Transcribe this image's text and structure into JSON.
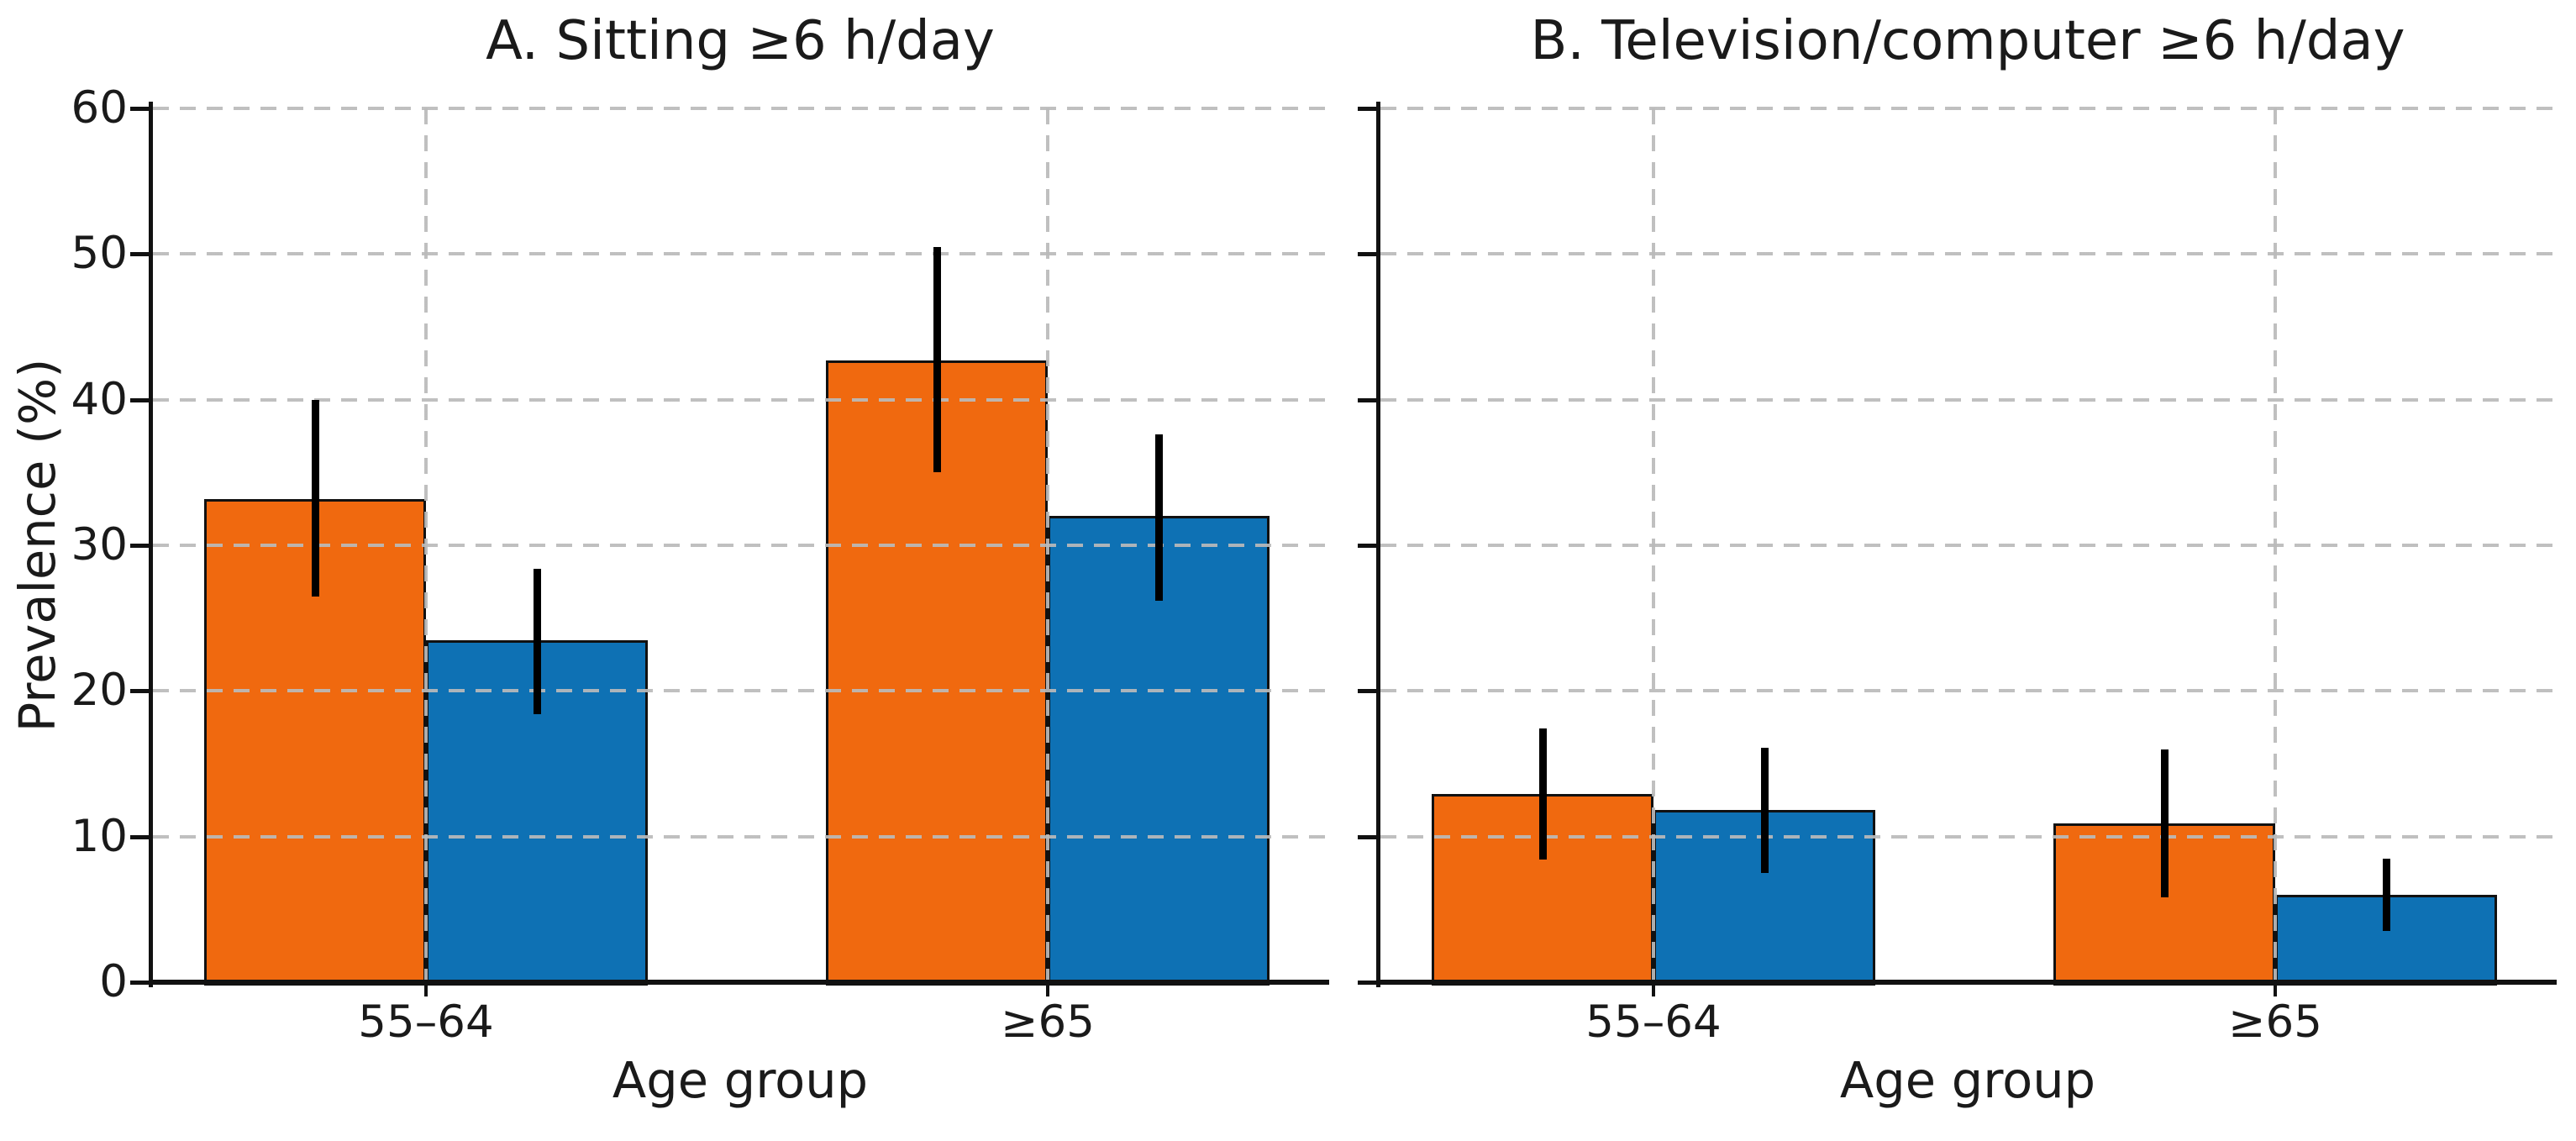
{
  "figure": {
    "background": "#ffffff",
    "text_color": "#1a1a1a",
    "grid_color": "#bababa",
    "error_bar_color": "#000000",
    "bar_edge_color": "#111111"
  },
  "chart_data": [
    {
      "type": "bar",
      "panel": "A",
      "title": "A. Sitting ≥6 h/day",
      "xlabel": "Age group",
      "ylabel": "Prevalence (%)",
      "categories": [
        "55–64",
        "≥65"
      ],
      "series": [
        {
          "name": "series-orange",
          "color": "#F0690F",
          "values": [
            33.2,
            42.7
          ],
          "ci_low": [
            26.5,
            35.0
          ],
          "ci_high": [
            40.0,
            50.5
          ]
        },
        {
          "name": "series-blue",
          "color": "#0E71B4",
          "values": [
            23.5,
            32.0
          ],
          "ci_low": [
            18.4,
            26.2
          ],
          "ci_high": [
            28.4,
            37.6
          ]
        }
      ],
      "ylim": [
        0,
        60
      ],
      "yticks": [
        0,
        10,
        20,
        30,
        40,
        50,
        60
      ],
      "grid": true,
      "legend": false,
      "error_bars": true
    },
    {
      "type": "bar",
      "panel": "B",
      "title": "B. Television/computer ≥6 h/day",
      "xlabel": "Age group",
      "ylabel": "Prevalence (%)",
      "categories": [
        "55–64",
        "≥65"
      ],
      "series": [
        {
          "name": "series-orange",
          "color": "#F0690F",
          "values": [
            12.9,
            10.9
          ],
          "ci_low": [
            8.4,
            5.8
          ],
          "ci_high": [
            17.4,
            16.0
          ]
        },
        {
          "name": "series-blue",
          "color": "#0E71B4",
          "values": [
            11.8,
            6.0
          ],
          "ci_low": [
            7.5,
            3.5
          ],
          "ci_high": [
            16.1,
            8.5
          ]
        }
      ],
      "ylim": [
        0,
        60
      ],
      "yticks": [
        0,
        10,
        20,
        30,
        40,
        50,
        60
      ],
      "grid": true,
      "legend": false,
      "error_bars": true
    }
  ]
}
